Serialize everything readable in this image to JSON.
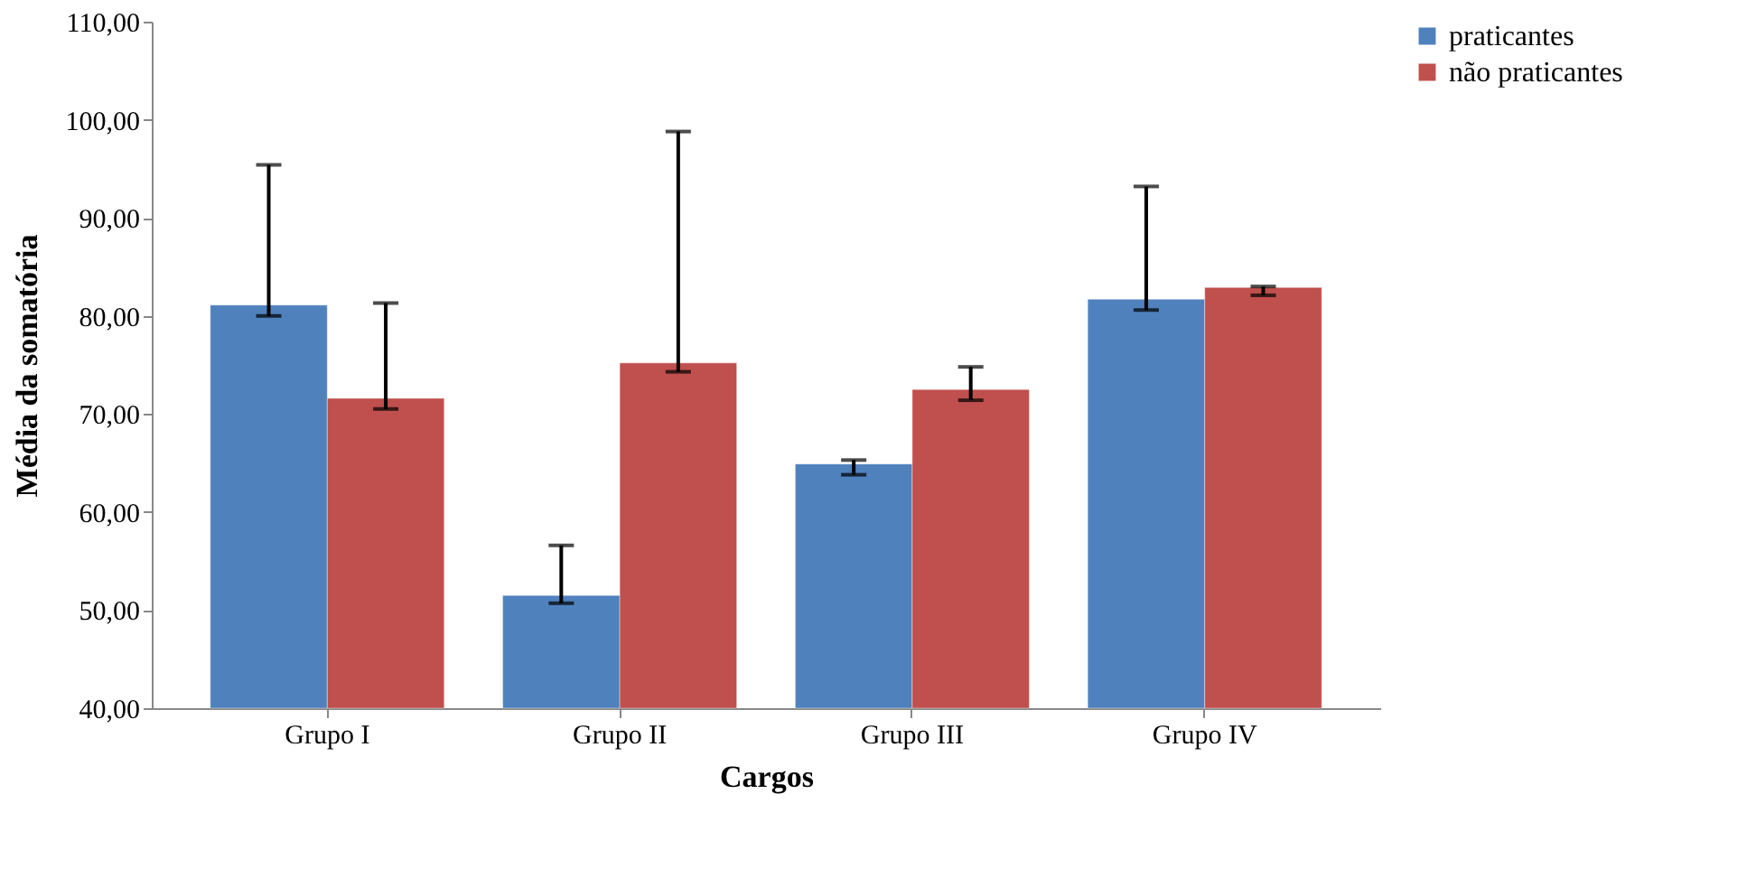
{
  "chart_data": {
    "type": "bar",
    "xlabel": "Cargos",
    "ylabel": "Média da somatória",
    "categories": [
      "Grupo I",
      "Grupo II",
      "Grupo III",
      "Grupo IV"
    ],
    "series": [
      {
        "name": "praticantes",
        "color": "#4f81bd",
        "values": [
          81.1,
          51.5,
          64.9,
          81.7
        ],
        "errors": [
          [
            80.0,
            95.4
          ],
          [
            50.7,
            56.6
          ],
          [
            63.8,
            65.3
          ],
          [
            80.6,
            93.2
          ]
        ]
      },
      {
        "name": "não praticantes",
        "color": "#c0504d",
        "values": [
          71.6,
          75.2,
          72.5,
          82.9
        ],
        "errors": [
          [
            70.5,
            81.3
          ],
          [
            74.3,
            98.8
          ],
          [
            71.4,
            74.8
          ],
          [
            82.1,
            83.0
          ]
        ]
      }
    ],
    "ylim": [
      40,
      110
    ],
    "yticks": [
      {
        "value": 40,
        "label": "40,00"
      },
      {
        "value": 50,
        "label": "50,00"
      },
      {
        "value": 60,
        "label": "60,00"
      },
      {
        "value": 70,
        "label": "70,00"
      },
      {
        "value": 80,
        "label": "80,00"
      },
      {
        "value": 90,
        "label": "90,00"
      },
      {
        "value": 100,
        "label": "100,00"
      },
      {
        "value": 110,
        "label": "110,00"
      }
    ],
    "grid": false,
    "legend": "right"
  }
}
